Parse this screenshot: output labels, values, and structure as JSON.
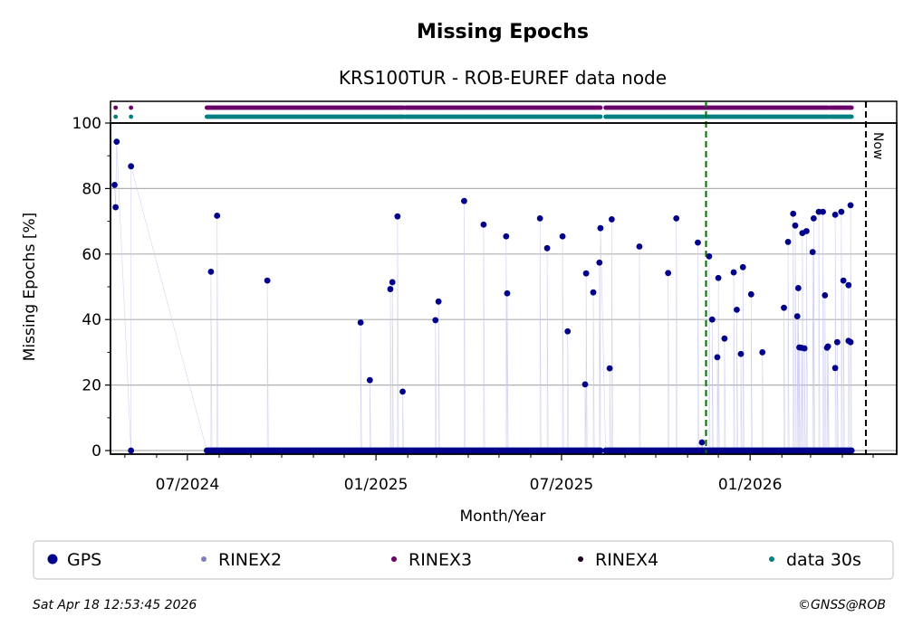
{
  "chart_data": {
    "type": "scatter",
    "title": "Missing Epochs",
    "subtitle": "KRS100TUR - ROB-EUREF data node",
    "xlabel": "Month/Year",
    "ylabel": "Missing Epochs [%]",
    "x_unit": "days since 2024-07-01",
    "xlim": [
      -75,
      692
    ],
    "ylim": [
      -1.1,
      100
    ],
    "yticks": [
      0,
      20,
      40,
      60,
      80,
      100
    ],
    "yticks_minor": [
      10,
      30,
      50,
      70,
      90
    ],
    "xticks": [
      {
        "day": 0,
        "label": "07/2024"
      },
      {
        "day": 184,
        "label": "01/2025"
      },
      {
        "day": 365,
        "label": "07/2025"
      },
      {
        "day": 549,
        "label": "01/2026"
      }
    ],
    "xticks_minor": [
      -61,
      -30,
      31,
      62,
      92,
      123,
      153,
      215,
      243,
      274,
      304,
      335,
      396,
      427,
      457,
      488,
      518,
      580,
      608,
      639,
      669
    ],
    "grid": "y-major",
    "gps_series": {
      "name": "GPS",
      "color": "#00008b",
      "points": [
        [
          -71,
          81.1
        ],
        [
          -70,
          74.3
        ],
        [
          -69,
          94.3
        ],
        [
          -55,
          86.8
        ],
        [
          -55,
          0
        ],
        [
          23,
          54.6
        ],
        [
          29,
          71.7
        ],
        [
          78,
          51.9
        ],
        [
          169,
          39.1
        ],
        [
          178,
          21.5
        ],
        [
          198,
          49.3
        ],
        [
          200,
          51.4
        ],
        [
          205,
          71.5
        ],
        [
          210,
          18.0
        ],
        [
          242,
          39.8
        ],
        [
          245,
          45.5
        ],
        [
          270,
          76.2
        ],
        [
          289,
          69.0
        ],
        [
          311,
          65.4
        ],
        [
          312,
          48.0
        ],
        [
          344,
          70.9
        ],
        [
          351,
          61.8
        ],
        [
          366,
          65.4
        ],
        [
          371,
          36.4
        ],
        [
          388,
          20.2
        ],
        [
          389,
          54.1
        ],
        [
          396,
          48.3
        ],
        [
          402,
          57.4
        ],
        [
          403,
          67.9
        ],
        [
          412,
          25.1
        ],
        [
          414,
          70.6
        ],
        [
          441,
          62.3
        ],
        [
          469,
          54.2
        ],
        [
          477,
          70.9
        ],
        [
          498,
          63.5
        ],
        [
          502,
          2.5
        ],
        [
          509,
          59.3
        ],
        [
          512,
          40.0
        ],
        [
          517,
          28.5
        ],
        [
          518,
          52.7
        ],
        [
          524,
          34.2
        ],
        [
          533,
          54.4
        ],
        [
          536,
          43.0
        ],
        [
          540,
          29.5
        ],
        [
          542,
          56.0
        ],
        [
          550,
          47.7
        ],
        [
          561,
          30.0
        ],
        [
          582,
          43.6
        ],
        [
          586,
          63.7
        ],
        [
          591,
          72.3
        ],
        [
          593,
          68.7
        ],
        [
          595,
          41.0
        ],
        [
          596,
          49.6
        ],
        [
          597,
          31.5
        ],
        [
          599,
          31.4
        ],
        [
          600,
          66.4
        ],
        [
          602,
          31.2
        ],
        [
          604,
          67.0
        ],
        [
          610,
          60.6
        ],
        [
          611,
          70.9
        ],
        [
          616,
          72.9
        ],
        [
          620,
          72.9
        ],
        [
          622,
          47.4
        ],
        [
          624,
          31.4
        ],
        [
          625,
          31.8
        ],
        [
          632,
          25.2
        ],
        [
          632,
          72.0
        ],
        [
          634,
          33.1
        ],
        [
          638,
          72.9
        ],
        [
          640,
          51.9
        ],
        [
          645,
          50.5
        ],
        [
          645,
          33.5
        ],
        [
          647,
          33.1
        ],
        [
          647,
          74.9
        ]
      ],
      "zero_ranges": [
        [
          19,
          403
        ],
        [
          408,
          648
        ]
      ]
    },
    "availability_rows": [
      {
        "name": "RINEX3",
        "color": "#6a006a",
        "days": [
          -70,
          -55
        ],
        "ranges": [
          [
            19,
            211
          ],
          [
            213,
            403
          ],
          [
            408,
            625
          ],
          [
            627,
            648
          ]
        ]
      },
      {
        "name": "data 30s",
        "color": "#008080",
        "days": [
          -70,
          -55
        ],
        "ranges": [
          [
            19,
            211
          ],
          [
            213,
            403
          ],
          [
            408,
            625
          ],
          [
            627,
            648
          ]
        ]
      }
    ],
    "markers": [
      {
        "name": "event",
        "day": 506,
        "color": "#007000"
      },
      {
        "name": "now",
        "day": 662,
        "color": "#000000",
        "label": "Now"
      }
    ],
    "legend": {
      "placement": "bottom",
      "items": [
        {
          "label": "GPS",
          "color": "#00008b"
        },
        {
          "label": "RINEX2",
          "color": "#8080c0"
        },
        {
          "label": "RINEX3",
          "color": "#6a006a"
        },
        {
          "label": "RINEX4",
          "color": "#200020"
        },
        {
          "label": "data 30s",
          "color": "#008080"
        }
      ]
    }
  },
  "footer": {
    "timestamp": "Sat Apr 18 12:53:45 2026",
    "copyright": "©GNSS@ROB"
  }
}
